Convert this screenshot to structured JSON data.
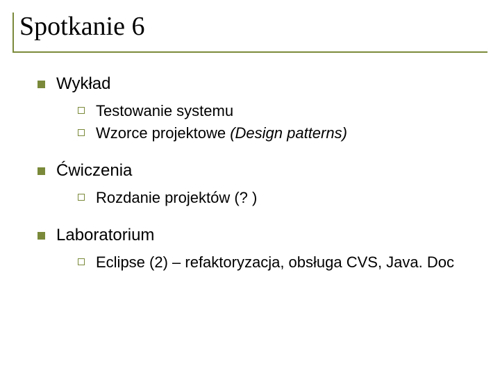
{
  "colors": {
    "accent": "#7a8a3a",
    "text": "#000000",
    "bg": "#ffffff"
  },
  "title": "Spotkanie 6",
  "sections": [
    {
      "label": "Wykład",
      "items": [
        {
          "text": "Testowanie systemu"
        },
        {
          "prefix": "Wzorce projektowe ",
          "italic": "(Design patterns)"
        }
      ]
    },
    {
      "label": "Ćwiczenia",
      "items": [
        {
          "text": "Rozdanie projektów (? )"
        }
      ]
    },
    {
      "label": "Laboratorium",
      "items": [
        {
          "text": "Eclipse (2) – refaktoryzacja, obsługa CVS, Java. Doc"
        }
      ]
    }
  ]
}
